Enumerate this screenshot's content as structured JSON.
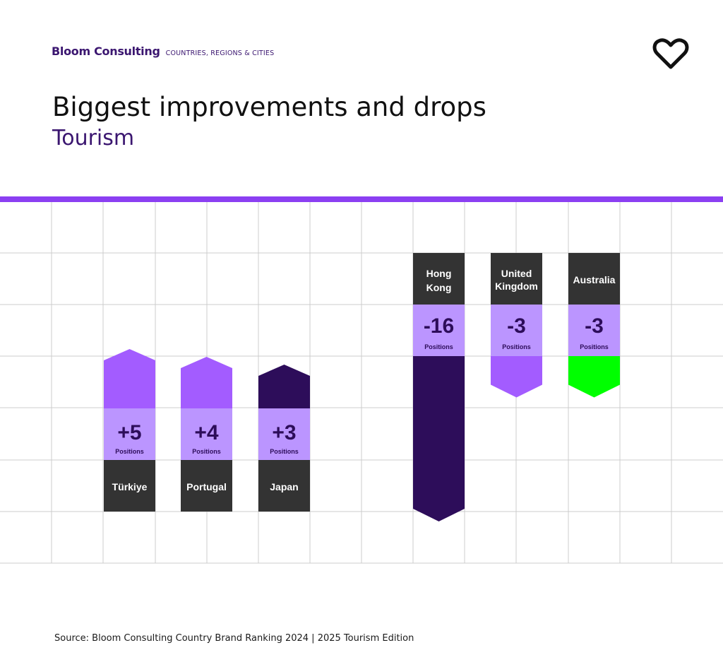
{
  "header": {
    "brand": "Bloom Consulting",
    "tagline": "COUNTRIES, REGIONS & CITIES",
    "icon": "heart-icon"
  },
  "title": "Biggest improvements and drops",
  "subtitle": "Tourism",
  "source": "Source: Bloom Consulting Country Brand Ranking 2024 | 2025 Tourism Edition",
  "colors": {
    "accent": "#8b3ff2",
    "dark_purple": "#2d0d5a",
    "mid_purple": "#a35cff",
    "light_purple": "#bb95ff",
    "label_bg": "#333333",
    "green": "#00ff00",
    "grid": "#cccccc",
    "number_text": "#2d0d5a",
    "label_text": "#ffffff"
  },
  "chart_data": {
    "type": "bar",
    "title": "Biggest improvements and drops",
    "subtitle": "Tourism",
    "value_unit": "Positions",
    "series": [
      {
        "name": "improvements",
        "items": [
          {
            "country": "Türkiye",
            "value": 5,
            "label": "+5",
            "unit": "Positions",
            "color": "#a35cff"
          },
          {
            "country": "Portugal",
            "value": 4,
            "label": "+4",
            "unit": "Positions",
            "color": "#a35cff"
          },
          {
            "country": "Japan",
            "value": 3,
            "label": "+3",
            "unit": "Positions",
            "color": "#2d0d5a"
          }
        ]
      },
      {
        "name": "drops",
        "items": [
          {
            "country": "Hong Kong",
            "value": -16,
            "label": "-16",
            "unit": "Positions",
            "color": "#2d0d5a"
          },
          {
            "country": "United Kingdom",
            "value": -3,
            "label": "-3",
            "unit": "Positions",
            "color": "#a35cff"
          },
          {
            "country": "Australia",
            "value": -3,
            "label": "-3",
            "unit": "Positions",
            "color": "#00ff00"
          }
        ]
      }
    ]
  }
}
